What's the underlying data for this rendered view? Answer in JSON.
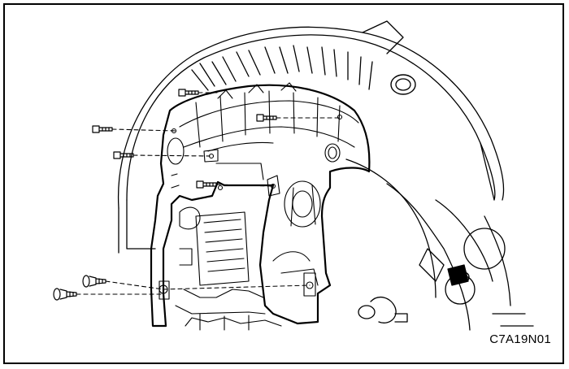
{
  "figure": {
    "code": "C7A19N01"
  },
  "parts": {
    "fender_liner": "fender-liner",
    "bolts": 6,
    "push_clips": 2
  },
  "colors": {
    "line": "#000000",
    "background": "#ffffff"
  }
}
